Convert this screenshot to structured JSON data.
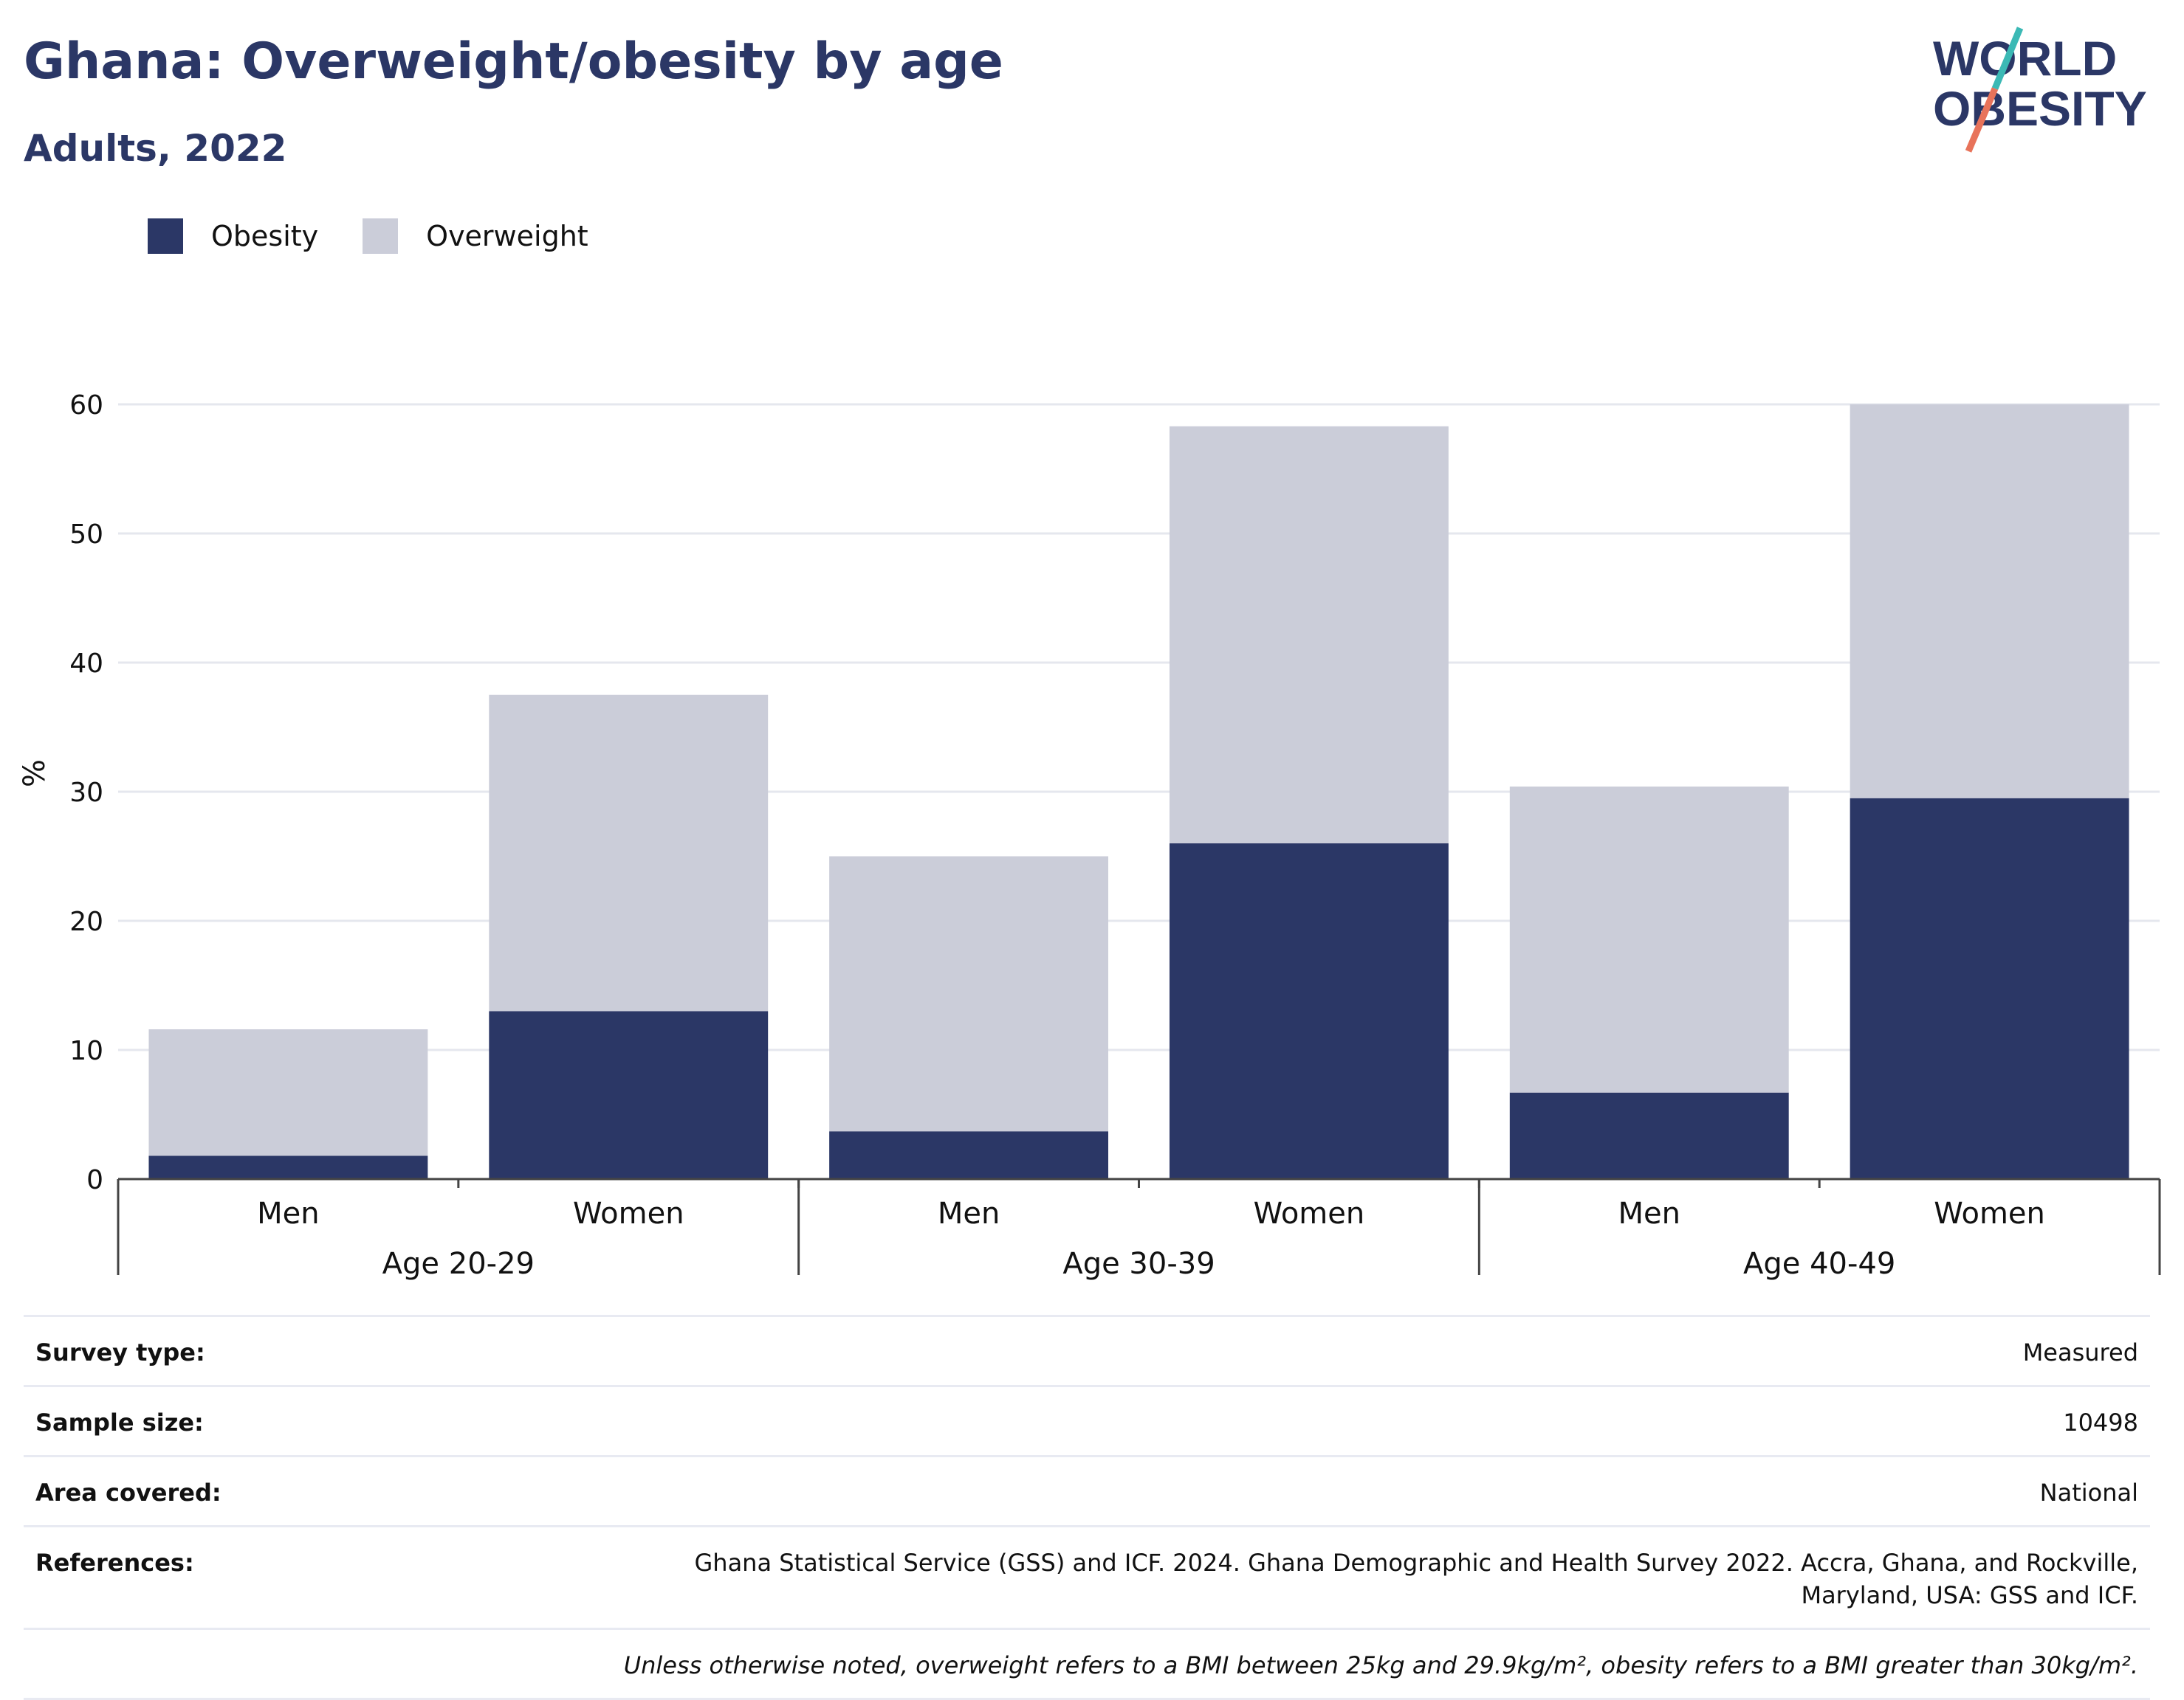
{
  "header": {
    "title": "Ghana: Overweight/obesity by age",
    "subtitle": "Adults, 2022"
  },
  "logo": {
    "line1": "WORLD",
    "line2": "OBESITY",
    "colors": {
      "text": "#2b3766",
      "slash_top": "#3bb9b5",
      "slash_bottom": "#e8735a"
    }
  },
  "colors": {
    "obesity": "#2b3766",
    "overweight": "#cbcdd9",
    "grid": "#e5e7ee",
    "axis": "#444444"
  },
  "chart_data": {
    "type": "bar",
    "stacked": true,
    "ylabel": "%",
    "ylim": [
      0,
      60
    ],
    "yticks": [
      0,
      10,
      20,
      30,
      40,
      50,
      60
    ],
    "grid": true,
    "legend_position": "top-left",
    "groups": [
      "Age 20-29",
      "Age 30-39",
      "Age 40-49"
    ],
    "categories": [
      "Men",
      "Women",
      "Men",
      "Women",
      "Men",
      "Women"
    ],
    "series": [
      {
        "name": "Obesity",
        "values": [
          1.8,
          13.0,
          3.7,
          26.0,
          6.7,
          29.5
        ]
      },
      {
        "name": "Overweight",
        "values": [
          9.8,
          24.5,
          21.3,
          32.3,
          23.7,
          30.5
        ]
      }
    ]
  },
  "info": {
    "rows": [
      {
        "label": "Survey type:",
        "value": "Measured"
      },
      {
        "label": "Sample size:",
        "value": "10498"
      },
      {
        "label": "Area covered:",
        "value": "National"
      },
      {
        "label": "References:",
        "value": "Ghana Statistical Service (GSS) and ICF. 2024. Ghana Demographic and Health Survey 2022. Accra, Ghana, and Rockville, Maryland, USA: GSS and ICF."
      }
    ],
    "footnote": "Unless otherwise noted, overweight refers to a BMI between 25kg and 29.9kg/m², obesity refers to a BMI greater than 30kg/m²."
  }
}
